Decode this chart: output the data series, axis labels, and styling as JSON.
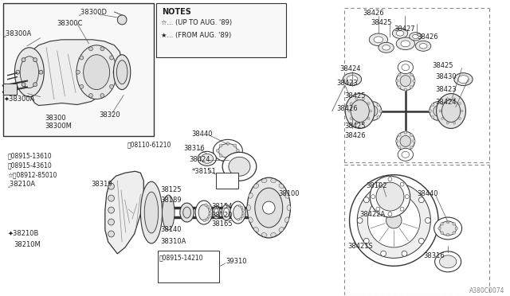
{
  "bg_color": "#ffffff",
  "line_color": "#333333",
  "text_color": "#222222",
  "fig_width": 6.4,
  "fig_height": 3.72,
  "watermark": "A380C0074",
  "notes_title": "NOTES",
  "notes_line1": "☆... (UP TO AUG. '89)",
  "notes_line2": "★... (FROM AUG. '89)"
}
